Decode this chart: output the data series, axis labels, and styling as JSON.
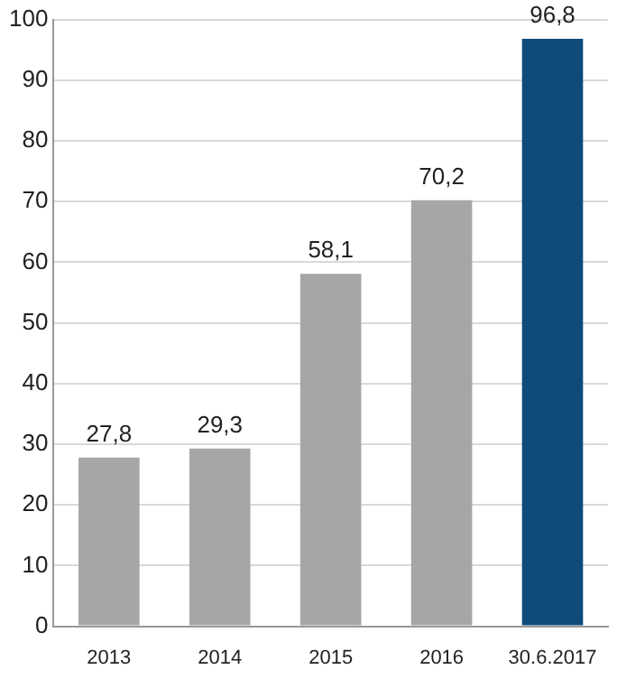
{
  "chart_data": {
    "type": "bar",
    "categories": [
      "2013",
      "2014",
      "2015",
      "2016",
      "30.6.2017"
    ],
    "values": [
      27.8,
      29.3,
      58.1,
      70.2,
      96.8
    ],
    "colors": [
      "#a6a6a6",
      "#a6a6a6",
      "#a6a6a6",
      "#a6a6a6",
      "#0e4a7a"
    ],
    "value_labels": [
      "27,8",
      "29,3",
      "58,1",
      "70,2",
      "96,8"
    ],
    "ylim": [
      0,
      100
    ],
    "yticks": [
      0,
      10,
      20,
      30,
      40,
      50,
      60,
      70,
      80,
      90,
      100
    ],
    "grid": "y",
    "legend": false
  }
}
